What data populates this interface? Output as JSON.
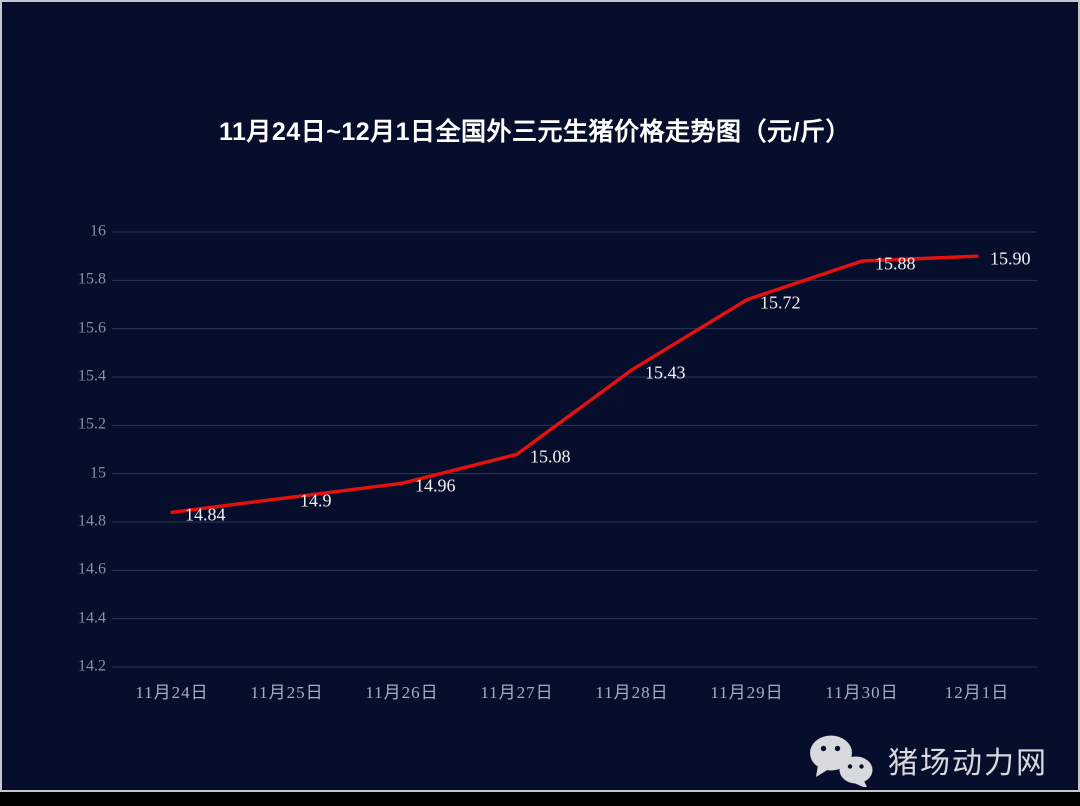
{
  "frame": {
    "background_color": "#060e2c",
    "border_color": "#c7c8cd",
    "bottom_band_color": "#000000"
  },
  "chart_data": {
    "type": "line",
    "title": "11月24日~12月1日全国外三元生猪价格走势图（元/斤）",
    "categories": [
      "11月24日",
      "11月25日",
      "11月26日",
      "11月27日",
      "11月28日",
      "11月29日",
      "11月30日",
      "12月1日"
    ],
    "values": [
      14.84,
      14.9,
      14.96,
      15.08,
      15.43,
      15.72,
      15.88,
      15.9
    ],
    "data_labels": [
      "14.84",
      "14.9",
      "14.96",
      "15.08",
      "15.43",
      "15.72",
      "15.88",
      "15.90"
    ],
    "y_tick_labels": [
      "16",
      "15.8",
      "15.6",
      "15.4",
      "15.2",
      "15",
      "14.8",
      "14.6",
      "14.4",
      "14.2"
    ],
    "y_tick_values": [
      16,
      15.8,
      15.6,
      15.4,
      15.2,
      15,
      14.8,
      14.6,
      14.4,
      14.2
    ],
    "ylim": [
      14.2,
      16
    ],
    "xlabel": "",
    "ylabel": "",
    "grid": true,
    "legend": "none",
    "line_color": "#e8100e",
    "data_label_color": "#f2f2f3",
    "y_axis_label_color": "#8a91a5",
    "x_axis_label_color": "#a7adc0",
    "title_color": "#ffffff"
  },
  "watermark": {
    "text": "猪场动力网",
    "icon": "wechat-icon",
    "color": "#d8d9dd"
  }
}
